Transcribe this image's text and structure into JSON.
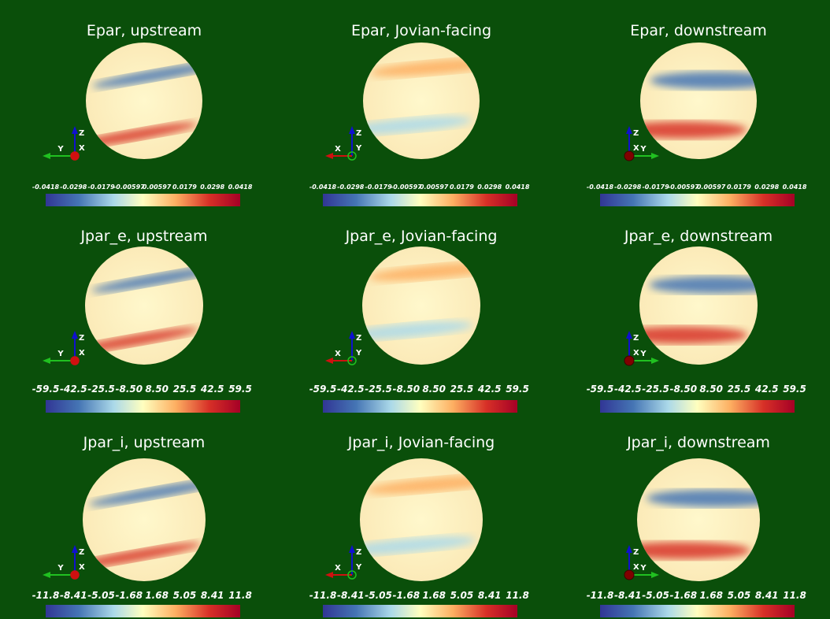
{
  "panels": [
    {
      "title": "Epar, upstream",
      "ticks": [
        "-0.0418",
        "-0.0298",
        "-0.0179",
        "-0.00597",
        "0.00597",
        "0.0179",
        "0.0298",
        "0.0418"
      ],
      "triad": {
        "left": "Y",
        "up": "Z",
        "mid": "X"
      }
    },
    {
      "title": "Epar, Jovian-facing",
      "ticks": [
        "-0.0418",
        "-0.0298",
        "-0.0179",
        "-0.00597",
        "0.00597",
        "0.0179",
        "0.0298",
        "0.0418"
      ],
      "triad": {
        "left": "X",
        "up": "Z",
        "mid": "Y"
      }
    },
    {
      "title": "Epar, downstream",
      "ticks": [
        "-0.0418",
        "-0.0298",
        "-0.0179",
        "-0.00597",
        "0.00597",
        "0.0179",
        "0.0298",
        "0.0418"
      ],
      "triad": {
        "up": "Z",
        "mid": "X",
        "right": "Y"
      }
    },
    {
      "title": "Jpar_e, upstream",
      "ticks": [
        "-59.5",
        "-42.5",
        "-25.5",
        "-8.50",
        "8.50",
        "25.5",
        "42.5",
        "59.5"
      ],
      "triad": {
        "left": "Y",
        "up": "Z",
        "mid": "X"
      }
    },
    {
      "title": "Jpar_e, Jovian-facing",
      "ticks": [
        "-59.5",
        "-42.5",
        "-25.5",
        "-8.50",
        "8.50",
        "25.5",
        "42.5",
        "59.5"
      ],
      "triad": {
        "left": "X",
        "up": "Z",
        "mid": "Y"
      }
    },
    {
      "title": "Jpar_e, downstream",
      "ticks": [
        "-59.5",
        "-42.5",
        "-25.5",
        "-8.50",
        "8.50",
        "25.5",
        "42.5",
        "59.5"
      ],
      "triad": {
        "up": "Z",
        "mid": "X",
        "right": "Y"
      }
    },
    {
      "title": "Jpar_i, upstream",
      "ticks": [
        "-11.8",
        "-8.41",
        "-5.05",
        "-1.68",
        "1.68",
        "5.05",
        "8.41",
        "11.8"
      ],
      "triad": {
        "left": "Y",
        "up": "Z",
        "mid": "X"
      }
    },
    {
      "title": "Jpar_i, Jovian-facing",
      "ticks": [
        "-11.8",
        "-8.41",
        "-5.05",
        "-1.68",
        "1.68",
        "5.05",
        "8.41",
        "11.8"
      ],
      "triad": {
        "left": "X",
        "up": "Z",
        "mid": "Y"
      }
    },
    {
      "title": "Jpar_i, downstream",
      "ticks": [
        "-11.8",
        "-8.41",
        "-5.05",
        "-1.68",
        "1.68",
        "5.05",
        "8.41",
        "11.8"
      ],
      "triad": {
        "up": "Z",
        "mid": "X",
        "right": "Y"
      }
    }
  ]
}
